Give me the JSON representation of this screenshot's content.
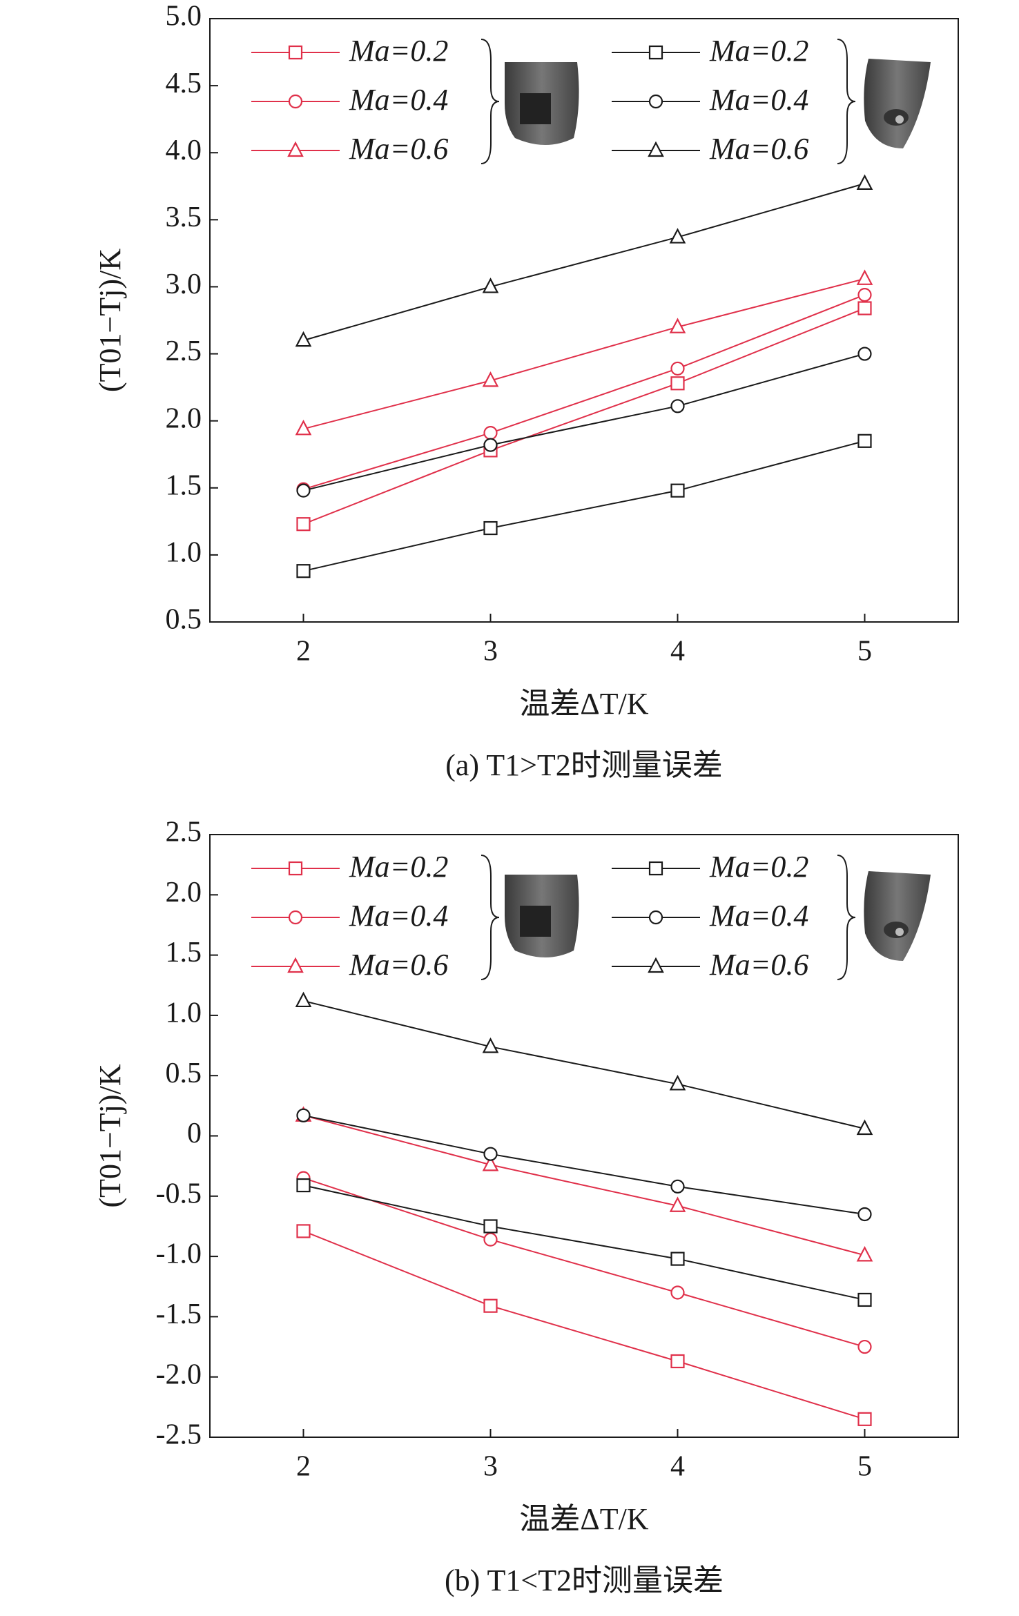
{
  "chart_data": [
    {
      "type": "line",
      "caption": "(a) T1>T2时测量误差",
      "xlabel": "温差ΔT/K",
      "ylabel": "(T01−Tj)/K",
      "x": [
        2,
        3,
        4,
        5
      ],
      "xlim": [
        1.5,
        5.5
      ],
      "xticks": [
        2,
        3,
        4,
        5
      ],
      "ylim": [
        0.5,
        5.0
      ],
      "yticks": [
        0.5,
        {
          "value": 1.0,
          "label": "1.0"
        },
        1.5,
        {
          "value": 2.0,
          "label": "2.0"
        },
        2.5,
        {
          "value": 3.0,
          "label": "3.0"
        },
        3.5,
        {
          "value": 4.0,
          "label": "4.0"
        },
        4.5,
        {
          "value": 5.0,
          "label": "5.0"
        }
      ],
      "series": [
        {
          "name": "Ma=0.2",
          "color": "#e0304a",
          "marker": "square",
          "values": [
            1.23,
            1.78,
            2.28,
            2.84
          ]
        },
        {
          "name": "Ma=0.4",
          "color": "#e0304a",
          "marker": "circle",
          "values": [
            1.49,
            1.91,
            2.39,
            2.94
          ]
        },
        {
          "name": "Ma=0.6",
          "color": "#e0304a",
          "marker": "triangle",
          "values": [
            1.94,
            2.3,
            2.7,
            3.06
          ]
        },
        {
          "name": "Ma=0.2",
          "color": "#1a1a1a",
          "marker": "square",
          "values": [
            0.88,
            1.2,
            1.48,
            1.85
          ]
        },
        {
          "name": "Ma=0.4",
          "color": "#1a1a1a",
          "marker": "circle",
          "values": [
            1.48,
            1.82,
            2.11,
            2.5
          ]
        },
        {
          "name": "Ma=0.6",
          "color": "#1a1a1a",
          "marker": "triangle",
          "values": [
            2.6,
            3.0,
            3.37,
            3.77
          ]
        }
      ]
    },
    {
      "type": "line",
      "caption": "(b) T1<T2时测量误差",
      "xlabel": "温差ΔT/K",
      "ylabel": "(T01−Tj)/K",
      "x": [
        2,
        3,
        4,
        5
      ],
      "xlim": [
        1.5,
        5.5
      ],
      "xticks": [
        2,
        3,
        4,
        5
      ],
      "ylim": [
        -2.5,
        2.5
      ],
      "yticks": [
        -2.5,
        {
          "value": -2.0,
          "label": "-2.0"
        },
        -1.5,
        {
          "value": -1.0,
          "label": "-1.0"
        },
        -0.5,
        0,
        0.5,
        {
          "value": 1.0,
          "label": "1.0"
        },
        1.5,
        {
          "value": 2.0,
          "label": "2.0"
        },
        2.5
      ],
      "series": [
        {
          "name": "Ma=0.2",
          "color": "#e0304a",
          "marker": "square",
          "values": [
            -0.79,
            -1.41,
            -1.87,
            -2.35
          ]
        },
        {
          "name": "Ma=0.4",
          "color": "#e0304a",
          "marker": "circle",
          "values": [
            -0.35,
            -0.86,
            -1.3,
            -1.75
          ]
        },
        {
          "name": "Ma=0.6",
          "color": "#e0304a",
          "marker": "triangle",
          "values": [
            0.17,
            -0.24,
            -0.58,
            -0.99
          ]
        },
        {
          "name": "Ma=0.2",
          "color": "#1a1a1a",
          "marker": "square",
          "values": [
            -0.41,
            -0.75,
            -1.02,
            -1.36
          ]
        },
        {
          "name": "Ma=0.4",
          "color": "#1a1a1a",
          "marker": "circle",
          "values": [
            0.17,
            -0.15,
            -0.42,
            -0.65
          ]
        },
        {
          "name": "Ma=0.6",
          "color": "#1a1a1a",
          "marker": "triangle",
          "values": [
            1.12,
            0.74,
            0.43,
            0.06
          ]
        }
      ]
    }
  ]
}
